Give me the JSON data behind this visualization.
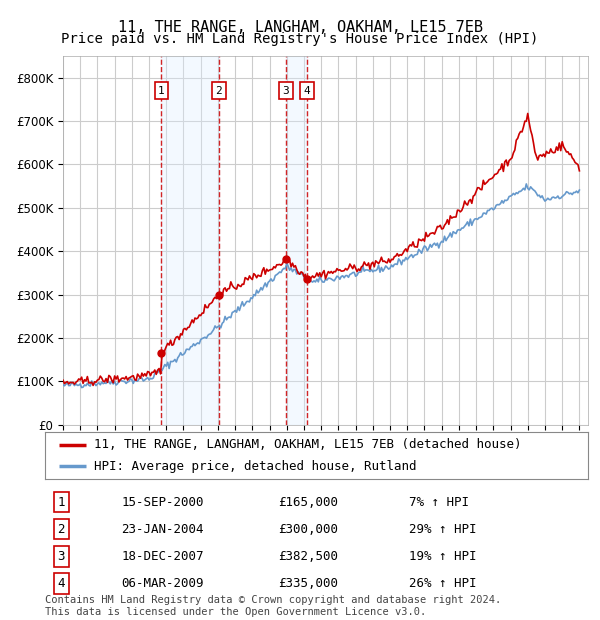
{
  "title": "11, THE RANGE, LANGHAM, OAKHAM, LE15 7EB",
  "subtitle": "Price paid vs. HM Land Registry's House Price Index (HPI)",
  "ylim": [
    0,
    850000
  ],
  "yticks": [
    0,
    100000,
    200000,
    300000,
    400000,
    500000,
    600000,
    700000,
    800000
  ],
  "ytick_labels": [
    "£0",
    "£100K",
    "£200K",
    "£300K",
    "£400K",
    "£500K",
    "£600K",
    "£700K",
    "£800K"
  ],
  "red_line_color": "#cc0000",
  "blue_line_color": "#6699cc",
  "sale_marker_color": "#cc0000",
  "transaction_color": "#cc0000",
  "background_color": "#ffffff",
  "grid_color": "#cccccc",
  "shade_color": "#ddeeff",
  "legend_label_red": "11, THE RANGE, LANGHAM, OAKHAM, LE15 7EB (detached house)",
  "legend_label_blue": "HPI: Average price, detached house, Rutland",
  "transactions": [
    {
      "id": 1,
      "date": "15-SEP-2000",
      "price": 165000,
      "pct": "7%",
      "direction": "↑",
      "year": 2000.71
    },
    {
      "id": 2,
      "date": "23-JAN-2004",
      "price": 300000,
      "pct": "29%",
      "direction": "↑",
      "year": 2004.06
    },
    {
      "id": 3,
      "date": "18-DEC-2007",
      "price": 382500,
      "pct": "19%",
      "direction": "↑",
      "year": 2007.96
    },
    {
      "id": 4,
      "date": "06-MAR-2009",
      "price": 335000,
      "pct": "26%",
      "direction": "↑",
      "year": 2009.18
    }
  ],
  "sale_prices": [
    165000,
    300000,
    382500,
    335000
  ],
  "footer": "Contains HM Land Registry data © Crown copyright and database right 2024.\nThis data is licensed under the Open Government Licence v3.0.",
  "title_fontsize": 11,
  "subtitle_fontsize": 10,
  "tick_fontsize": 8.5,
  "legend_fontsize": 9,
  "table_fontsize": 9,
  "footer_fontsize": 7.5
}
